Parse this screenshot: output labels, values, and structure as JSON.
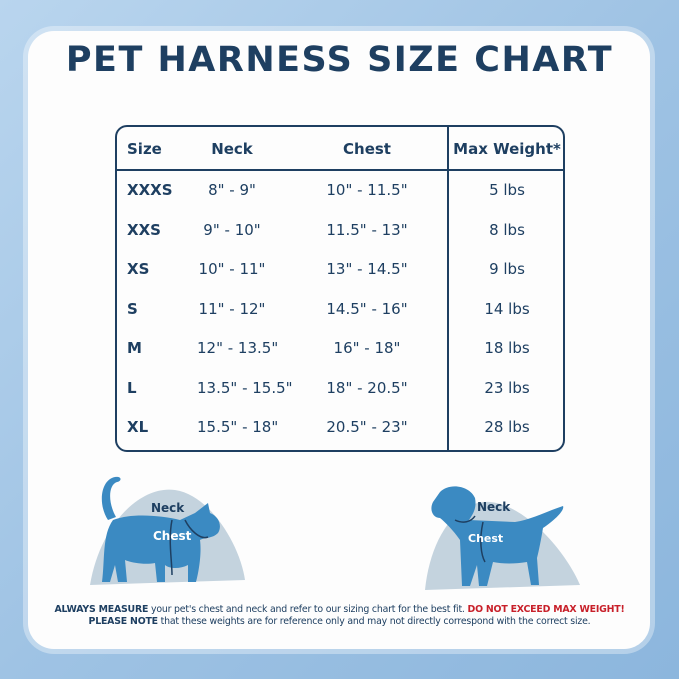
{
  "title": "PET HARNESS SIZE CHART",
  "table": {
    "headers": [
      "Size",
      "Neck",
      "Chest",
      "Max Weight*"
    ],
    "rows": [
      [
        "XXXS",
        "8\" - 9\"",
        "10\" - 11.5\"",
        "5 lbs"
      ],
      [
        "XXS",
        "9\" - 10\"",
        "11.5\" - 13\"",
        "8 lbs"
      ],
      [
        "XS",
        "10\" - 11\"",
        "13\" - 14.5\"",
        "9 lbs"
      ],
      [
        "S",
        "11\" - 12\"",
        "14.5\" - 16\"",
        "14 lbs"
      ],
      [
        "M",
        "12\" - 13.5\"",
        "16\" - 18\"",
        "18 lbs"
      ],
      [
        "L",
        "13.5\" - 15.5\"",
        "18\" - 20.5\"",
        "23 lbs"
      ],
      [
        "XL",
        "15.5\" - 18\"",
        "20.5\" - 23\"",
        "28 lbs"
      ]
    ]
  },
  "cat": {
    "neck": "Neck",
    "chest": "Chest",
    "icon": "cat-silhouette-icon"
  },
  "dog": {
    "neck": "Neck",
    "chest": "Chest",
    "icon": "dog-silhouette-icon"
  },
  "note": {
    "line1_bold": "ALWAYS MEASURE",
    "line1_text": " your pet's chest and neck and refer  to our sizing chart for the best fit. ",
    "line1_warn": "DO NOT EXCEED MAX WEIGHT!",
    "line2_bold": "PLEASE NOTE",
    "line2_text": " that these weights are for reference only and may not directly correspond with the correct size."
  },
  "colors": {
    "navy": "#1e3f61",
    "pet_blue": "#3b8ac2",
    "blob": "#c4d3de",
    "warning": "#c8202a"
  }
}
